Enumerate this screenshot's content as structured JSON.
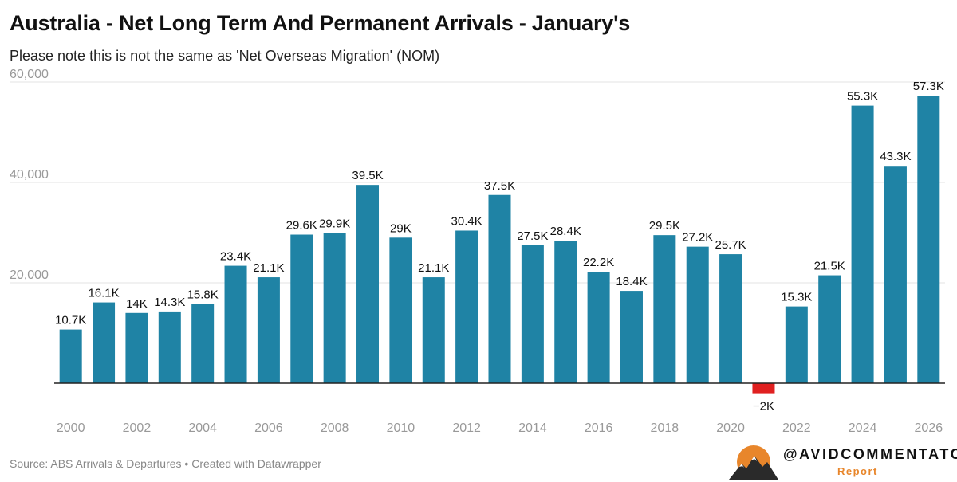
{
  "header": {
    "title": "Australia - Net Long Term And Permanent Arrivals - January's",
    "subtitle": "Please note this is not the same as 'Net Overseas Migration' (NOM)"
  },
  "footer": {
    "source": "Source: ABS Arrivals & Departures • Created with Datawrapper",
    "brand": "@AVIDCOMMENTATOR",
    "brand_sub": "Report"
  },
  "colors": {
    "bar": "#1f83a5",
    "negative_bar": "#e02020",
    "axis": "#222222",
    "grid": "#e3e3e3",
    "tick_label": "#999999",
    "value_label": "#111111",
    "brand_orange": "#e8862b"
  },
  "chart_data": {
    "type": "bar",
    "title": "Australia - Net Long Term And Permanent Arrivals - January's",
    "subtitle": "Please note this is not the same as 'Net Overseas Migration' (NOM)",
    "xlabel": "",
    "ylabel": "",
    "ylim": [
      -6000,
      60000
    ],
    "yticks": [
      20000,
      40000,
      60000
    ],
    "ytick_labels": [
      "20,000",
      "40,000",
      "60,000"
    ],
    "categories": [
      "2000",
      "2001",
      "2002",
      "2003",
      "2004",
      "2005",
      "2006",
      "2007",
      "2008",
      "2009",
      "2010",
      "2011",
      "2012",
      "2013",
      "2014",
      "2015",
      "2016",
      "2017",
      "2018",
      "2019",
      "2020",
      "2021",
      "2022",
      "2023",
      "2024",
      "2025",
      "2026"
    ],
    "xtick_labels": [
      "2000",
      "",
      "2002",
      "",
      "2004",
      "",
      "2006",
      "",
      "2008",
      "",
      "2010",
      "",
      "2012",
      "",
      "2014",
      "",
      "2016",
      "",
      "2018",
      "",
      "2020",
      "",
      "2022",
      "",
      "2024",
      "",
      "2026"
    ],
    "values": [
      10700,
      16100,
      14000,
      14300,
      15800,
      23400,
      21100,
      29600,
      29900,
      39500,
      29000,
      21100,
      30400,
      37500,
      27500,
      28400,
      22200,
      18400,
      29500,
      27200,
      25700,
      -2000,
      15300,
      21500,
      55300,
      43300,
      57300
    ],
    "labels": [
      "10.7K",
      "16.1K",
      "14K",
      "14.3K",
      "15.8K",
      "23.4K",
      "21.1K",
      "29.6K",
      "29.9K",
      "39.5K",
      "29K",
      "21.1K",
      "30.4K",
      "37.5K",
      "27.5K",
      "28.4K",
      "22.2K",
      "18.4K",
      "29.5K",
      "27.2K",
      "25.7K",
      "−2K",
      "15.3K",
      "21.5K",
      "55.3K",
      "43.3K",
      "57.3K"
    ],
    "grid": true,
    "legend": "none"
  }
}
